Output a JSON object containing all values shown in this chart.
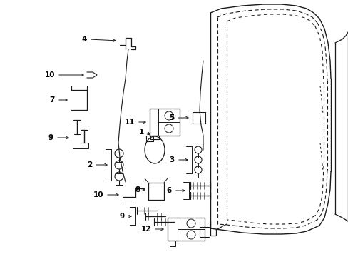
{
  "bg_color": "#ffffff",
  "line_color": "#1a1a1a",
  "fig_width": 4.89,
  "fig_height": 3.6,
  "dpi": 100,
  "label_fontsize": 7.5,
  "arrow_lw": 0.7,
  "part_lw": 0.8
}
